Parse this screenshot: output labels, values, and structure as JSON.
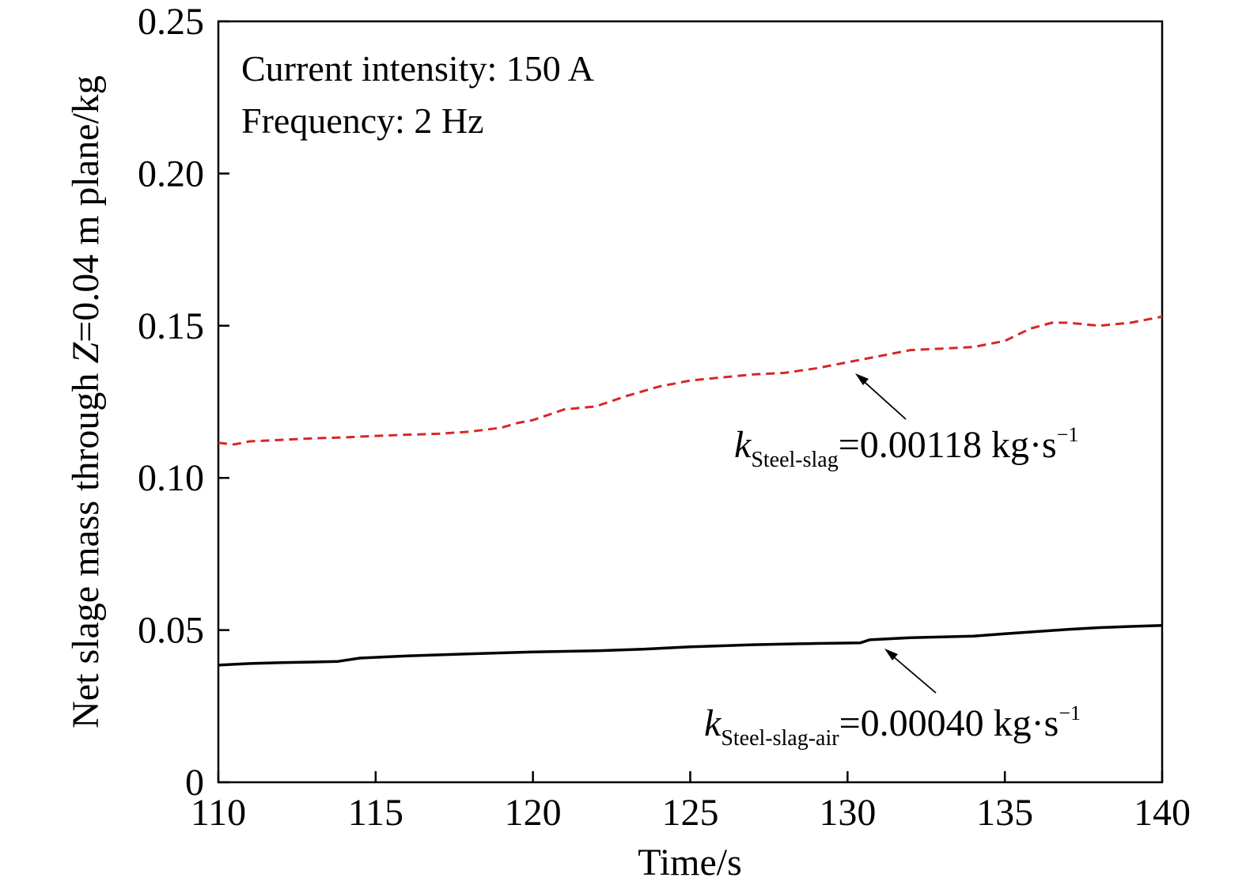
{
  "chart_data": {
    "type": "line",
    "xlabel": "Time/s",
    "ylabel_prefix": "Net slage mass through ",
    "ylabel_italic": "Z",
    "ylabel_suffix": "=0.04 m plane/kg",
    "xlim": [
      110,
      140
    ],
    "ylim": [
      0,
      0.25
    ],
    "x_ticks": [
      110,
      115,
      120,
      125,
      130,
      135,
      140
    ],
    "x_tick_labels": [
      "110",
      "115",
      "120",
      "125",
      "130",
      "135",
      "140"
    ],
    "y_ticks": [
      0,
      0.05,
      0.1,
      0.15,
      0.2,
      0.25
    ],
    "y_tick_labels": [
      "0",
      "0.05",
      "0.10",
      "0.15",
      "0.20",
      "0.25"
    ],
    "grid": false,
    "annotations": [
      "Current intensity: 150 A",
      "Frequency: 2 Hz"
    ],
    "series": [
      {
        "id": "steel-slag",
        "color": "#d62728",
        "style": "dashed",
        "label_k": "k",
        "label_sub": "Steel-slag",
        "label_value": "=0.00118 kg·s",
        "label_sup": "−1",
        "x": [
          110,
          110.5,
          111,
          112,
          113,
          114,
          115,
          116,
          117,
          118,
          119,
          119.5,
          120,
          121,
          122,
          123,
          124,
          125,
          126,
          127,
          128,
          129,
          130,
          131,
          132,
          133,
          134,
          135,
          135.8,
          136.5,
          137,
          138,
          139,
          140
        ],
        "y": [
          0.1115,
          0.111,
          0.112,
          0.1125,
          0.113,
          0.1133,
          0.1138,
          0.1142,
          0.1145,
          0.1152,
          0.1165,
          0.118,
          0.119,
          0.1225,
          0.1235,
          0.127,
          0.13,
          0.132,
          0.133,
          0.134,
          0.1345,
          0.136,
          0.138,
          0.14,
          0.142,
          0.1425,
          0.143,
          0.145,
          0.149,
          0.151,
          0.151,
          0.15,
          0.151,
          0.153
        ]
      },
      {
        "id": "steel-slag-air",
        "color": "#000000",
        "style": "solid",
        "label_k": "k",
        "label_sub": "Steel-slag-air",
        "label_value": "=0.00040 kg·s",
        "label_sup": "−1",
        "x": [
          110,
          111,
          112,
          113,
          113.8,
          114.5,
          116,
          118,
          120,
          122,
          123.5,
          125,
          127,
          129,
          130.4,
          130.7,
          132,
          134,
          135,
          136,
          137,
          138,
          139,
          140
        ],
        "y": [
          0.0385,
          0.039,
          0.0393,
          0.0395,
          0.0397,
          0.0408,
          0.0415,
          0.0422,
          0.0428,
          0.0432,
          0.0437,
          0.0445,
          0.0452,
          0.0456,
          0.0458,
          0.0468,
          0.0475,
          0.048,
          0.0488,
          0.0495,
          0.0502,
          0.0508,
          0.0512,
          0.0515
        ]
      }
    ]
  }
}
